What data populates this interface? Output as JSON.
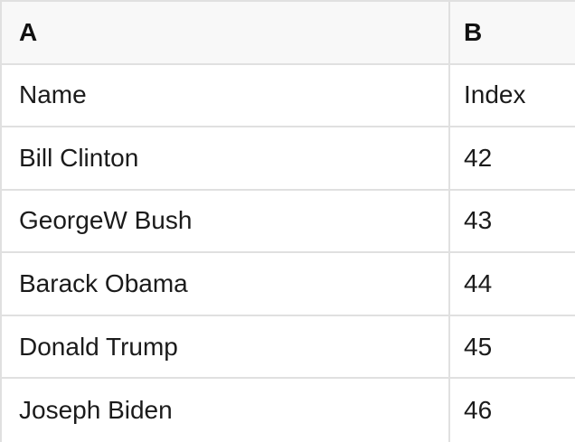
{
  "sheet": {
    "column_headers": [
      "A",
      "B"
    ],
    "rows": [
      [
        "Name",
        "Index"
      ],
      [
        "Bill Clinton",
        "42"
      ],
      [
        "GeorgeW Bush",
        "43"
      ],
      [
        "Barack Obama",
        "44"
      ],
      [
        "Donald Trump",
        "45"
      ],
      [
        "Joseph Biden",
        "46"
      ]
    ]
  },
  "colors": {
    "header_background": "#f8f8f8",
    "grid_line": "#e0e0e0",
    "cell_background": "#ffffff",
    "text": "#1b1b1b"
  }
}
